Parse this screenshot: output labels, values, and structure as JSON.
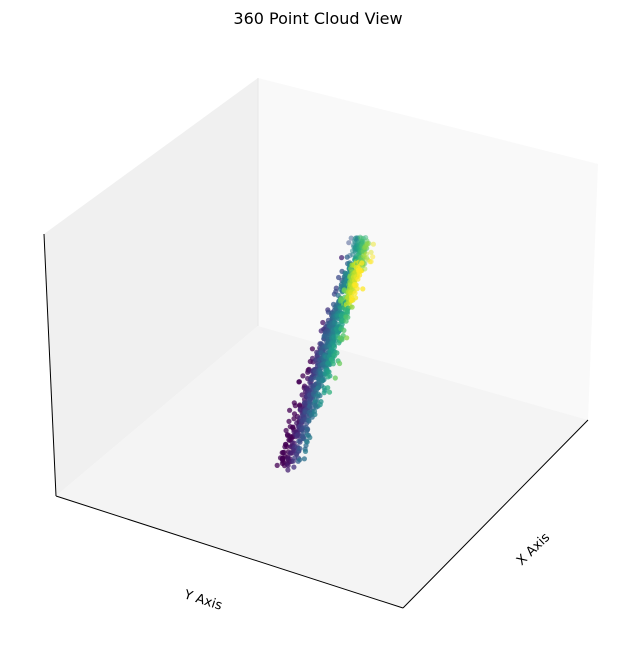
{
  "chart_data": {
    "type": "scatter",
    "projection": "3d",
    "title": "360 Point Cloud View",
    "xlabel": "X Axis",
    "ylabel": "Y Axis",
    "zlabel": "",
    "tick_labels": "hidden",
    "grid": false,
    "colormap": "viridis",
    "pane_color": "#f2f2f2",
    "point_alpha": 0.75,
    "point_count": 900
  }
}
